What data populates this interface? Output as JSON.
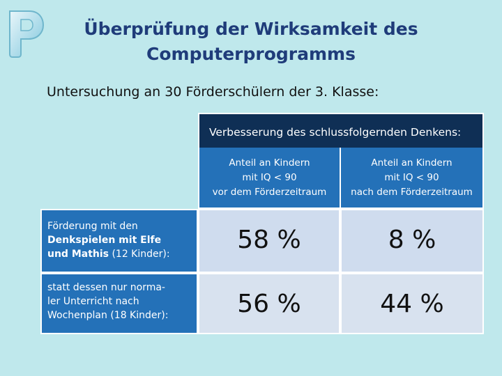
{
  "title": {
    "line1": "Überprüfung der Wirksamkeit des",
    "line2": "Computerprogramms"
  },
  "subtitle": "Untersuchung an 30 Förderschülern der 3. Klasse:",
  "table": {
    "header": "Verbesserung des schlussfolgernden Denkens:",
    "columns": [
      {
        "line1": "Anteil an Kindern",
        "line2": "mit IQ < 90",
        "line3": "vor dem Förderzeitraum"
      },
      {
        "line1": "Anteil an Kindern",
        "line2": "mit IQ < 90",
        "line3": "nach dem Förderzeitraum"
      }
    ],
    "rows": [
      {
        "label_plain": "Förderung mit den",
        "label_bold1": "Denkspielen mit Elfe",
        "label_bold2": "und Mathis",
        "label_tail": " (12 Kinder):",
        "values": [
          "58 %",
          "8 %"
        ]
      },
      {
        "label_line1": "statt dessen nur norma-",
        "label_line2": "ler Unterricht nach",
        "label_line3": "Wochenplan (18 Kinder):",
        "values": [
          "56 %",
          "44 %"
        ]
      }
    ]
  },
  "colors": {
    "background": "#bfe8ec",
    "title": "#1f3c7a",
    "header_dark": "#0f2f55",
    "header_blue": "#2471b8",
    "cell_light": "#cfdcee"
  }
}
